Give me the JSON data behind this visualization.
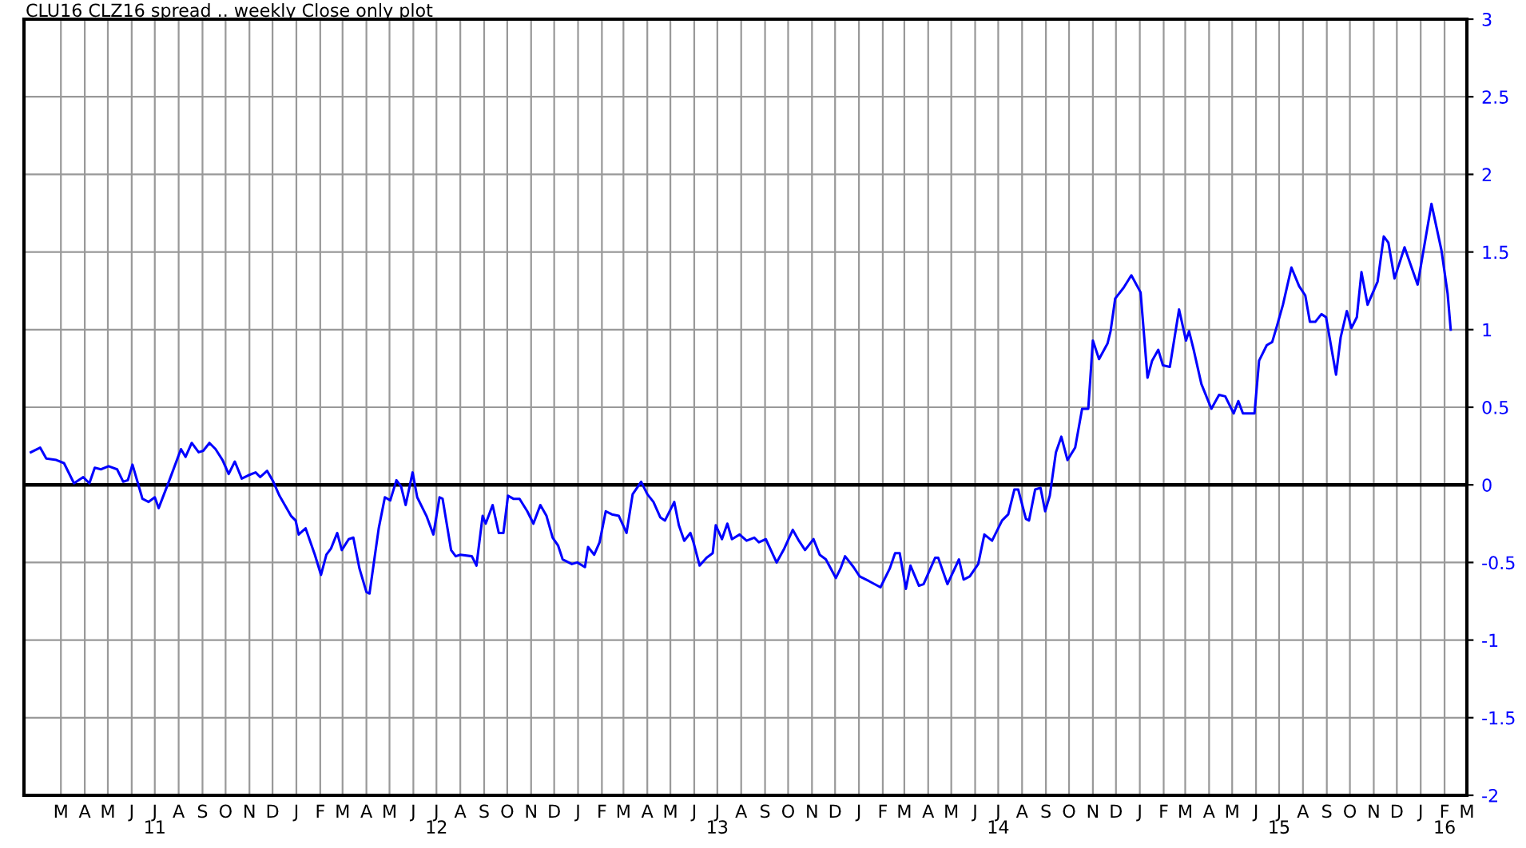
{
  "chart_data": {
    "type": "line",
    "title": "CLU16 CLZ16 spread .. weekly Close only plot",
    "x": [
      "2011-01-21",
      "2011-02-02",
      "2011-02-10",
      "2011-02-23",
      "2011-03-05",
      "2011-03-18",
      "2011-03-30",
      "2011-04-07",
      "2011-04-14",
      "2011-04-22",
      "2011-05-02",
      "2011-05-13",
      "2011-05-21",
      "2011-05-27",
      "2011-06-02",
      "2011-06-15",
      "2011-06-23",
      "2011-07-01",
      "2011-07-06",
      "2011-07-20",
      "2011-08-04",
      "2011-08-10",
      "2011-08-18",
      "2011-08-27",
      "2011-09-02",
      "2011-09-10",
      "2011-09-18",
      "2011-09-27",
      "2011-10-05",
      "2011-10-13",
      "2011-10-22",
      "2011-10-30",
      "2011-11-09",
      "2011-11-15",
      "2011-11-24",
      "2011-12-02",
      "2011-12-10",
      "2011-12-25",
      "2011-12-31",
      "2012-01-04",
      "2012-01-13",
      "2012-01-25",
      "2012-02-02",
      "2012-02-09",
      "2012-02-15",
      "2012-02-23",
      "2012-02-29",
      "2012-03-09",
      "2012-03-15",
      "2012-03-23",
      "2012-04-01",
      "2012-04-05",
      "2012-04-11",
      "2012-04-17",
      "2012-04-25",
      "2012-05-02",
      "2012-05-10",
      "2012-05-16",
      "2012-05-22",
      "2012-05-31",
      "2012-06-06",
      "2012-06-18",
      "2012-06-27",
      "2012-07-05",
      "2012-07-09",
      "2012-07-20",
      "2012-07-26",
      "2012-08-01",
      "2012-08-16",
      "2012-08-22",
      "2012-08-30",
      "2012-09-03",
      "2012-09-12",
      "2012-09-20",
      "2012-09-26",
      "2012-10-02",
      "2012-10-09",
      "2012-10-17",
      "2012-10-27",
      "2012-11-04",
      "2012-11-13",
      "2012-11-21",
      "2012-11-29",
      "2012-12-06",
      "2012-12-12",
      "2012-12-24",
      "2012-12-31",
      "2013-01-10",
      "2013-01-14",
      "2013-01-22",
      "2013-01-29",
      "2013-02-06",
      "2013-02-14",
      "2013-02-23",
      "2013-03-05",
      "2013-03-13",
      "2013-03-24",
      "2013-04-01",
      "2013-04-09",
      "2013-04-18",
      "2013-04-24",
      "2013-05-06",
      "2013-05-12",
      "2013-05-19",
      "2013-05-27",
      "2013-05-31",
      "2013-06-08",
      "2013-06-17",
      "2013-06-25",
      "2013-06-29",
      "2013-07-07",
      "2013-07-14",
      "2013-07-20",
      "2013-07-30",
      "2013-08-08",
      "2013-08-18",
      "2013-08-24",
      "2013-09-02",
      "2013-09-16",
      "2013-09-26",
      "2013-10-07",
      "2013-10-15",
      "2013-10-23",
      "2013-11-03",
      "2013-11-11",
      "2013-11-19",
      "2013-12-02",
      "2013-12-08",
      "2013-12-14",
      "2013-12-25",
      "2014-01-02",
      "2014-01-14",
      "2014-01-29",
      "2014-02-10",
      "2014-02-17",
      "2014-02-23",
      "2014-03-03",
      "2014-03-09",
      "2014-03-20",
      "2014-03-26",
      "2014-04-10",
      "2014-04-14",
      "2014-04-26",
      "2014-05-11",
      "2014-05-17",
      "2014-05-25",
      "2014-06-05",
      "2014-06-13",
      "2014-06-23",
      "2014-07-06",
      "2014-07-14",
      "2014-07-22",
      "2014-07-27",
      "2014-08-06",
      "2014-08-10",
      "2014-08-18",
      "2014-08-25",
      "2014-08-31",
      "2014-09-06",
      "2014-09-14",
      "2014-09-21",
      "2014-09-29",
      "2014-10-09",
      "2014-10-18",
      "2014-10-26",
      "2014-11-01",
      "2014-11-09",
      "2014-11-20",
      "2014-11-24",
      "2014-11-30",
      "2014-12-11",
      "2014-12-21",
      "2015-01-02",
      "2015-01-11",
      "2015-01-17",
      "2015-01-25",
      "2015-01-31",
      "2015-02-09",
      "2015-02-21",
      "2015-03-02",
      "2015-03-06",
      "2015-03-12",
      "2015-03-22",
      "2015-04-04",
      "2015-04-14",
      "2015-04-22",
      "2015-05-03",
      "2015-05-09",
      "2015-05-15",
      "2015-05-30",
      "2015-06-05",
      "2015-06-15",
      "2015-06-22",
      "2015-06-28",
      "2015-07-06",
      "2015-07-17",
      "2015-07-27",
      "2015-08-04",
      "2015-08-10",
      "2015-08-17",
      "2015-08-25",
      "2015-08-31",
      "2015-09-13",
      "2015-09-19",
      "2015-09-27",
      "2015-10-03",
      "2015-10-10",
      "2015-10-16",
      "2015-10-24",
      "2015-11-06",
      "2015-11-14",
      "2015-11-20",
      "2015-11-28",
      "2015-12-11",
      "2015-12-28",
      "2016-01-15",
      "2016-01-28",
      "2016-02-05",
      "2016-02-09"
    ],
    "series": [
      {
        "color": "#0000ff",
        "values": [
          0.21,
          0.24,
          0.17,
          0.16,
          0.14,
          0.01,
          0.05,
          0.01,
          0.11,
          0.1,
          0.12,
          0.1,
          0.02,
          0.03,
          0.13,
          -0.09,
          -0.11,
          -0.08,
          -0.15,
          0.03,
          0.23,
          0.18,
          0.27,
          0.21,
          0.22,
          0.27,
          0.23,
          0.16,
          0.07,
          0.15,
          0.04,
          0.06,
          0.08,
          0.05,
          0.09,
          0.02,
          -0.07,
          -0.2,
          -0.23,
          -0.32,
          -0.28,
          -0.45,
          -0.58,
          -0.45,
          -0.41,
          -0.31,
          -0.42,
          -0.35,
          -0.34,
          -0.54,
          -0.69,
          -0.7,
          -0.49,
          -0.28,
          -0.08,
          -0.1,
          0.03,
          -0.01,
          -0.13,
          0.08,
          -0.08,
          -0.2,
          -0.32,
          -0.08,
          -0.09,
          -0.42,
          -0.46,
          -0.45,
          -0.46,
          -0.52,
          -0.2,
          -0.25,
          -0.13,
          -0.31,
          -0.31,
          -0.07,
          -0.09,
          -0.09,
          -0.17,
          -0.25,
          -0.13,
          -0.2,
          -0.34,
          -0.39,
          -0.48,
          -0.51,
          -0.5,
          -0.53,
          -0.4,
          -0.45,
          -0.37,
          -0.17,
          -0.19,
          -0.2,
          -0.31,
          -0.06,
          0.02,
          -0.06,
          -0.11,
          -0.21,
          -0.23,
          -0.11,
          -0.26,
          -0.36,
          -0.31,
          -0.37,
          -0.52,
          -0.47,
          -0.44,
          -0.26,
          -0.35,
          -0.25,
          -0.35,
          -0.32,
          -0.36,
          -0.34,
          -0.37,
          -0.35,
          -0.5,
          -0.41,
          -0.29,
          -0.36,
          -0.42,
          -0.35,
          -0.45,
          -0.48,
          -0.6,
          -0.54,
          -0.46,
          -0.53,
          -0.59,
          -0.62,
          -0.66,
          -0.54,
          -0.44,
          -0.44,
          -0.67,
          -0.52,
          -0.65,
          -0.64,
          -0.47,
          -0.47,
          -0.64,
          -0.48,
          -0.61,
          -0.59,
          -0.51,
          -0.32,
          -0.36,
          -0.23,
          -0.19,
          -0.03,
          -0.03,
          -0.22,
          -0.23,
          -0.03,
          -0.02,
          -0.17,
          -0.07,
          0.21,
          0.31,
          0.16,
          0.24,
          0.49,
          0.49,
          0.93,
          0.81,
          0.91,
          0.99,
          1.2,
          1.27,
          1.35,
          1.24,
          0.69,
          0.8,
          0.87,
          0.77,
          0.76,
          1.13,
          0.93,
          0.99,
          0.87,
          0.65,
          0.49,
          0.58,
          0.57,
          0.46,
          0.54,
          0.46,
          0.46,
          0.8,
          0.9,
          0.92,
          1.02,
          1.16,
          1.4,
          1.28,
          1.22,
          1.05,
          1.05,
          1.1,
          1.08,
          0.71,
          0.95,
          1.12,
          1.01,
          1.08,
          1.37,
          1.16,
          1.31,
          1.6,
          1.56,
          1.33,
          1.53,
          1.29,
          1.81,
          1.51,
          1.23,
          1.0
        ]
      }
    ],
    "xlim": [
      "2011-01-12",
      "2016-03-01"
    ],
    "xticks": [
      {
        "value": "2011-03-01",
        "label": "M"
      },
      {
        "value": "2011-04-01",
        "label": "A"
      },
      {
        "value": "2011-05-01",
        "label": "M"
      },
      {
        "value": "2011-06-01",
        "label": "J"
      },
      {
        "value": "2011-07-01",
        "label": "J\n11"
      },
      {
        "value": "2011-08-01",
        "label": "A"
      },
      {
        "value": "2011-09-01",
        "label": "S"
      },
      {
        "value": "2011-10-01",
        "label": "O"
      },
      {
        "value": "2011-11-01",
        "label": "N"
      },
      {
        "value": "2011-12-01",
        "label": "D"
      },
      {
        "value": "2012-01-01",
        "label": "J"
      },
      {
        "value": "2012-02-01",
        "label": "F"
      },
      {
        "value": "2012-03-01",
        "label": "M"
      },
      {
        "value": "2012-04-01",
        "label": "A"
      },
      {
        "value": "2012-05-01",
        "label": "M"
      },
      {
        "value": "2012-06-01",
        "label": "J"
      },
      {
        "value": "2012-07-01",
        "label": "J\n12"
      },
      {
        "value": "2012-08-01",
        "label": "A"
      },
      {
        "value": "2012-09-01",
        "label": "S"
      },
      {
        "value": "2012-10-01",
        "label": "O"
      },
      {
        "value": "2012-11-01",
        "label": "N"
      },
      {
        "value": "2012-12-01",
        "label": "D"
      },
      {
        "value": "2013-01-01",
        "label": "J"
      },
      {
        "value": "2013-02-01",
        "label": "F"
      },
      {
        "value": "2013-03-01",
        "label": "M"
      },
      {
        "value": "2013-04-01",
        "label": "A"
      },
      {
        "value": "2013-05-01",
        "label": "M"
      },
      {
        "value": "2013-06-01",
        "label": "J"
      },
      {
        "value": "2013-07-01",
        "label": "J\n13"
      },
      {
        "value": "2013-08-01",
        "label": "A"
      },
      {
        "value": "2013-09-01",
        "label": "S"
      },
      {
        "value": "2013-10-01",
        "label": "O"
      },
      {
        "value": "2013-11-01",
        "label": "N"
      },
      {
        "value": "2013-12-01",
        "label": "D"
      },
      {
        "value": "2014-01-01",
        "label": "J"
      },
      {
        "value": "2014-02-01",
        "label": "F"
      },
      {
        "value": "2014-03-01",
        "label": "M"
      },
      {
        "value": "2014-04-01",
        "label": "A"
      },
      {
        "value": "2014-05-01",
        "label": "M"
      },
      {
        "value": "2014-06-01",
        "label": "J"
      },
      {
        "value": "2014-07-01",
        "label": "J\n14"
      },
      {
        "value": "2014-08-01",
        "label": "A"
      },
      {
        "value": "2014-09-01",
        "label": "S"
      },
      {
        "value": "2014-10-01",
        "label": "O"
      },
      {
        "value": "2014-11-01",
        "label": "N"
      },
      {
        "value": "2014-12-01",
        "label": "D"
      },
      {
        "value": "2015-01-01",
        "label": "J"
      },
      {
        "value": "2015-02-01",
        "label": "F"
      },
      {
        "value": "2015-03-01",
        "label": "M"
      },
      {
        "value": "2015-04-01",
        "label": "A"
      },
      {
        "value": "2015-05-01",
        "label": "M"
      },
      {
        "value": "2015-06-01",
        "label": "J"
      },
      {
        "value": "2015-07-01",
        "label": "J\n15"
      },
      {
        "value": "2015-08-01",
        "label": "A"
      },
      {
        "value": "2015-09-01",
        "label": "S"
      },
      {
        "value": "2015-10-01",
        "label": "O"
      },
      {
        "value": "2015-11-01",
        "label": "N"
      },
      {
        "value": "2015-12-01",
        "label": "D"
      },
      {
        "value": "2016-01-01",
        "label": "J"
      },
      {
        "value": "2016-02-01",
        "label": "F\n16"
      },
      {
        "value": "2016-03-01",
        "label": "M"
      }
    ],
    "ylim": [
      -2,
      3
    ],
    "yticks": [
      -2,
      -1.5,
      -1,
      -0.5,
      0,
      0.5,
      1,
      1.5,
      2,
      2.5,
      3
    ],
    "ref_lines": [
      {
        "axis": "y",
        "value": 0,
        "color": "#000000"
      }
    ],
    "grid": true,
    "marker": "none",
    "line_style": "solid"
  }
}
